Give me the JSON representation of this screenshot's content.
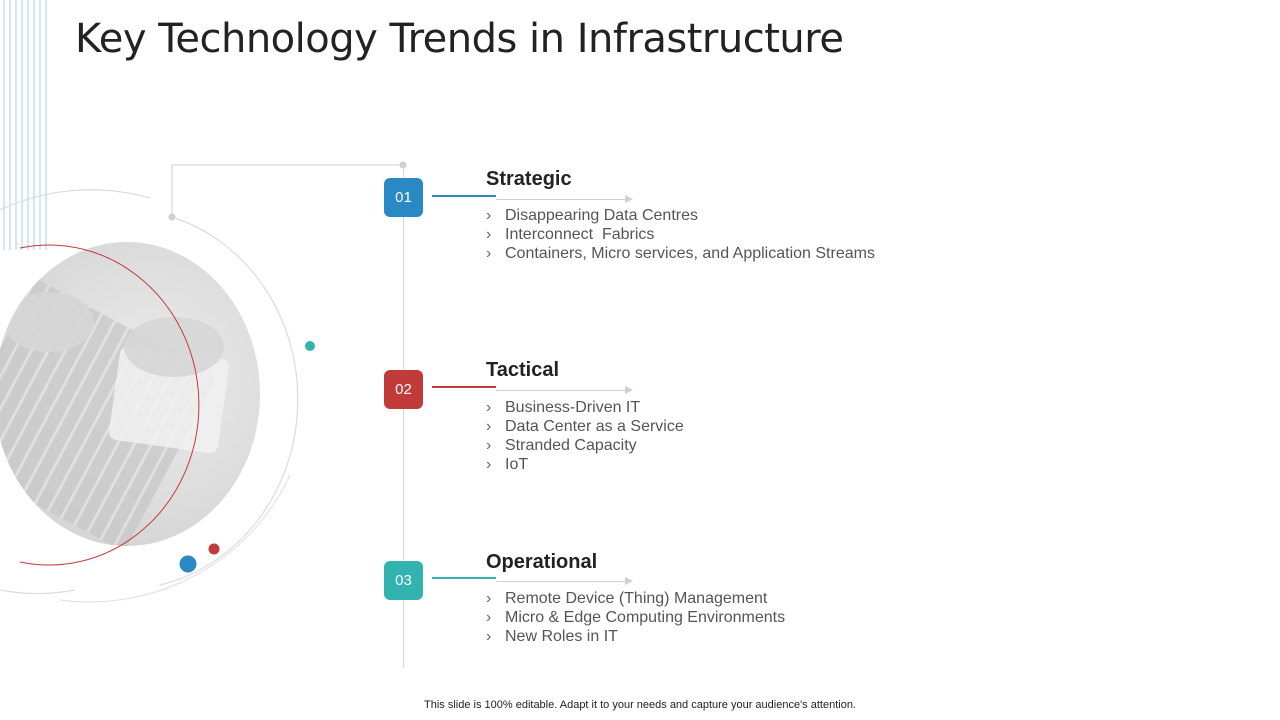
{
  "title": "Key Technology Trends in Infrastructure",
  "colors": {
    "blue": "#2a88c5",
    "red": "#c23b3b",
    "teal": "#33b3b0"
  },
  "sections": [
    {
      "number": "01",
      "title": "Strategic",
      "color": "#2a88c5",
      "items": [
        "Disappearing Data Centres",
        "Interconnect  Fabrics",
        "Containers, Micro services, and Application Streams"
      ]
    },
    {
      "number": "02",
      "title": "Tactical",
      "color": "#c23b3b",
      "items": [
        "Business-Driven IT",
        "Data Center as a Service",
        "Stranded Capacity",
        "IoT"
      ]
    },
    {
      "number": "03",
      "title": "Operational",
      "color": "#33b3b0",
      "items": [
        "Remote Device (Thing) Management",
        "Micro & Edge Computing Environments",
        "New Roles in IT"
      ]
    }
  ],
  "bullet_glyph": "›",
  "footer": "This slide is 100% editable. Adapt it to your needs and capture your audience's attention."
}
